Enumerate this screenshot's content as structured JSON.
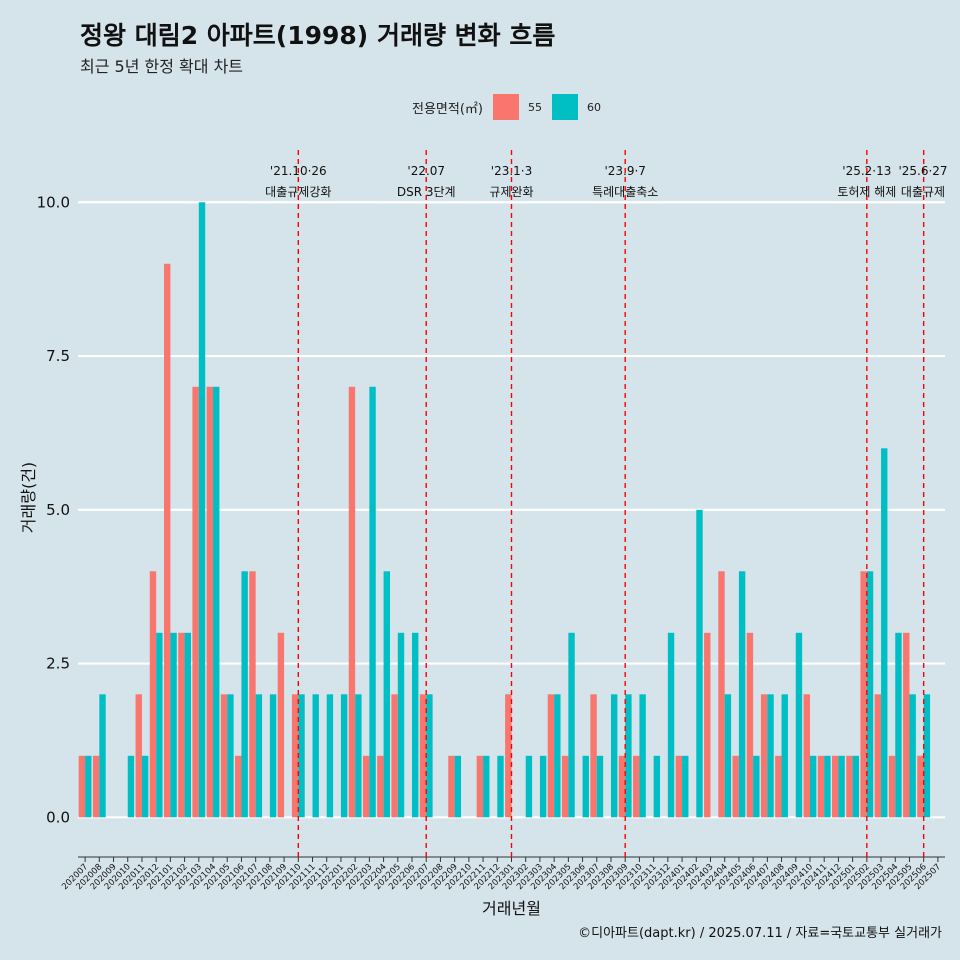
{
  "title": "정왕 대림2 아파트(1998) 거래량 변화 흐름",
  "subtitle": "최근 5년 한정 확대 차트",
  "caption": "©디아파트(dapt.kr) / 2025.07.11 / 자료=국토교통부 실거래가",
  "legend": {
    "title": "전용면적(㎡)",
    "items": [
      {
        "label": "55",
        "color": "#f8766d"
      },
      {
        "label": "60",
        "color": "#00bfc4"
      }
    ]
  },
  "chart_data": {
    "type": "bar",
    "title": "정왕 대림2 아파트(1998) 거래량 변화 흐름",
    "xlabel": "거래년월",
    "ylabel": "거래량(건)",
    "ylim": [
      -0.45,
      10.85
    ],
    "yticks": [
      0.0,
      2.5,
      5.0,
      7.5,
      10.0
    ],
    "ytick_labels": [
      "0.0",
      "2.5",
      "5.0",
      "7.5",
      "10.0"
    ],
    "grid": true,
    "categories": [
      "202007",
      "202008",
      "202009",
      "202010",
      "202011",
      "202012",
      "202101",
      "202102",
      "202103",
      "202104",
      "202105",
      "202106",
      "202107",
      "202108",
      "202109",
      "202110",
      "202111",
      "202112",
      "202201",
      "202202",
      "202203",
      "202204",
      "202205",
      "202206",
      "202207",
      "202208",
      "202209",
      "202210",
      "202211",
      "202212",
      "202301",
      "202302",
      "202303",
      "202304",
      "202305",
      "202306",
      "202307",
      "202308",
      "202309",
      "202310",
      "202311",
      "202312",
      "202401",
      "202402",
      "202403",
      "202404",
      "202405",
      "202406",
      "202407",
      "202408",
      "202409",
      "202410",
      "202411",
      "202412",
      "202501",
      "202502",
      "202503",
      "202504",
      "202505",
      "202506",
      "202507"
    ],
    "series": [
      {
        "name": "55",
        "color": "#f8766d",
        "values": [
          1,
          1,
          0,
          0,
          2,
          4,
          9,
          3,
          7,
          7,
          2,
          1,
          4,
          0,
          3,
          2,
          0,
          0,
          0,
          7,
          1,
          1,
          2,
          0,
          2,
          0,
          1,
          0,
          1,
          0,
          2,
          0,
          0,
          2,
          1,
          0,
          2,
          0,
          1,
          1,
          0,
          0,
          1,
          0,
          3,
          4,
          1,
          3,
          2,
          1,
          0,
          2,
          1,
          1,
          1,
          4,
          2,
          1,
          3,
          1,
          0
        ]
      },
      {
        "name": "60",
        "color": "#00bfc4",
        "values": [
          1,
          2,
          0,
          1,
          1,
          3,
          3,
          3,
          10,
          7,
          2,
          4,
          2,
          2,
          0,
          2,
          2,
          2,
          2,
          2,
          7,
          4,
          3,
          3,
          2,
          0,
          1,
          0,
          1,
          1,
          0,
          1,
          1,
          2,
          3,
          1,
          1,
          2,
          2,
          2,
          1,
          3,
          1,
          5,
          0,
          2,
          4,
          1,
          2,
          2,
          3,
          1,
          1,
          1,
          1,
          4,
          6,
          3,
          2,
          2,
          0
        ]
      }
    ],
    "events": [
      {
        "month": "202110",
        "date": "'21.10·26",
        "label": "대출규제강화"
      },
      {
        "month": "202207",
        "date": "'22.07",
        "label": "DSR 3단계"
      },
      {
        "month": "202301",
        "date": "'23.1·3",
        "label": "규제완화"
      },
      {
        "month": "202309",
        "date": "'23.9·7",
        "label": "특례대출축소"
      },
      {
        "month": "202502",
        "date": "'25.2·13",
        "label": "토허제 해제"
      },
      {
        "month": "202506",
        "date": "'25.6·27",
        "label": "대출규제"
      }
    ]
  }
}
